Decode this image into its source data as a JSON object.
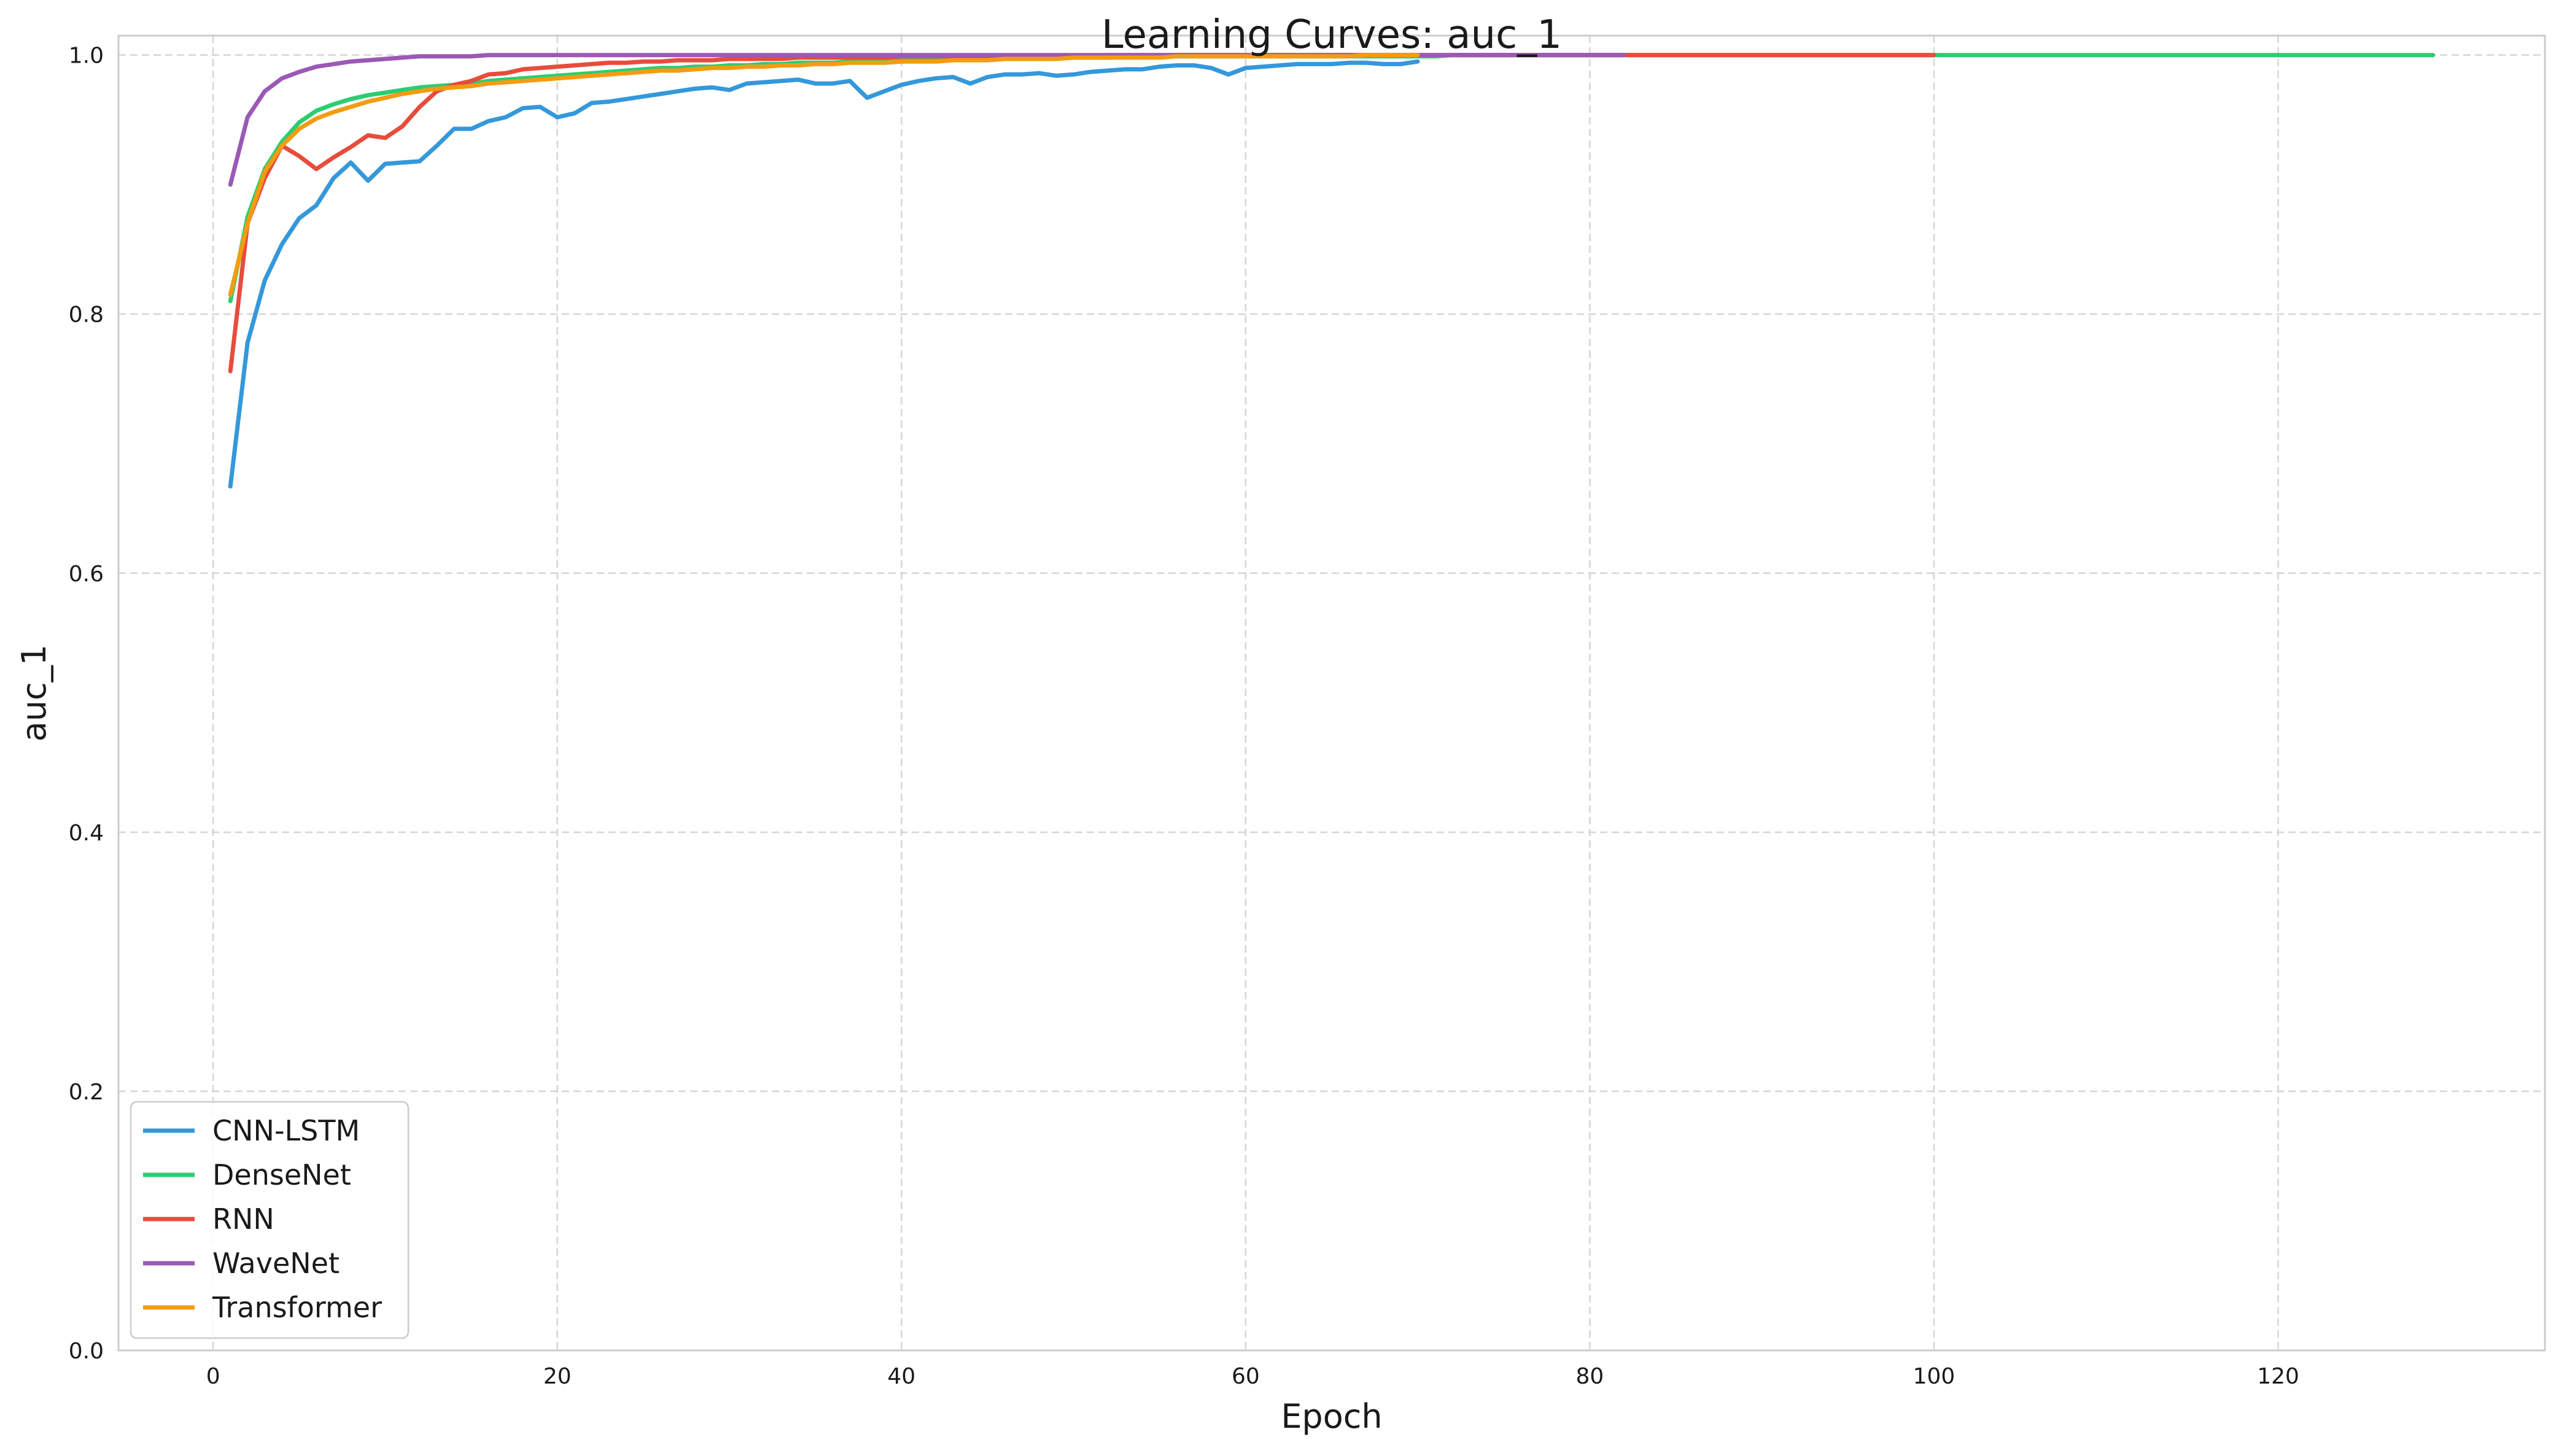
{
  "chart_data": {
    "type": "line",
    "title": "Learning Curves: auc_1",
    "xlabel": "Epoch",
    "ylabel": "auc_1",
    "xlim": [
      -5.5,
      135.5
    ],
    "ylim": [
      0.0,
      1.015
    ],
    "xticks": [
      0,
      20,
      40,
      60,
      80,
      100,
      120
    ],
    "xtick_labels": [
      "0",
      "20",
      "40",
      "60",
      "80",
      "100",
      "120"
    ],
    "yticks": [
      0.0,
      0.2,
      0.4,
      0.6,
      0.8,
      1.0
    ],
    "ytick_labels": [
      "0.0",
      "0.2",
      "0.4",
      "0.6",
      "0.8",
      "1.0"
    ],
    "grid": true,
    "legend_position": "lower-left",
    "series": [
      {
        "name": "CNN-LSTM",
        "color": "#3498db",
        "x_start": 1,
        "values": [
          0.667,
          0.778,
          0.826,
          0.854,
          0.874,
          0.884,
          0.905,
          0.917,
          0.903,
          0.916,
          0.917,
          0.918,
          0.93,
          0.943,
          0.943,
          0.949,
          0.952,
          0.959,
          0.96,
          0.952,
          0.955,
          0.963,
          0.964,
          0.966,
          0.968,
          0.97,
          0.972,
          0.974,
          0.975,
          0.973,
          0.978,
          0.979,
          0.98,
          0.981,
          0.978,
          0.978,
          0.98,
          0.967,
          0.972,
          0.977,
          0.98,
          0.982,
          0.983,
          0.978,
          0.983,
          0.985,
          0.985,
          0.986,
          0.984,
          0.985,
          0.987,
          0.988,
          0.989,
          0.989,
          0.991,
          0.992,
          0.992,
          0.99,
          0.985,
          0.99,
          0.991,
          0.992,
          0.993,
          0.993,
          0.993,
          0.994,
          0.994,
          0.993,
          0.993,
          0.995
        ]
      },
      {
        "name": "DenseNet",
        "color": "#2ecc71",
        "x_start": 1,
        "values": [
          0.81,
          0.875,
          0.912,
          0.933,
          0.948,
          0.957,
          0.962,
          0.966,
          0.969,
          0.971,
          0.973,
          0.975,
          0.976,
          0.977,
          0.978,
          0.98,
          0.981,
          0.982,
          0.983,
          0.984,
          0.985,
          0.986,
          0.987,
          0.988,
          0.989,
          0.99,
          0.99,
          0.991,
          0.991,
          0.992,
          0.992,
          0.993,
          0.993,
          0.994,
          0.994,
          0.994,
          0.995,
          0.995,
          0.995,
          0.996,
          0.996,
          0.996,
          0.997,
          0.997,
          0.997,
          0.997,
          0.998,
          0.998,
          0.998,
          0.998,
          0.998,
          0.998,
          0.999,
          0.999,
          0.999,
          0.999,
          0.999,
          0.999,
          0.999,
          0.999,
          0.999,
          0.999,
          0.999,
          0.999,
          0.999,
          0.999,
          0.999,
          0.999,
          0.999,
          0.999,
          0.999,
          1.0,
          1.0,
          1.0,
          1.0,
          1.0,
          1.0,
          1.0,
          1.0,
          1.0,
          1.0,
          1.0,
          1.0,
          1.0,
          1.0,
          1.0,
          1.0,
          1.0,
          1.0,
          1.0,
          1.0,
          1.0,
          1.0,
          1.0,
          1.0,
          1.0,
          1.0,
          1.0,
          1.0,
          1.0,
          1.0,
          1.0,
          1.0,
          1.0,
          1.0,
          1.0,
          1.0,
          1.0,
          1.0,
          1.0,
          1.0,
          1.0,
          1.0,
          1.0,
          1.0,
          1.0,
          1.0,
          1.0,
          1.0,
          1.0,
          1.0,
          1.0,
          1.0,
          1.0,
          1.0,
          1.0,
          1.0,
          1.0,
          1.0
        ]
      },
      {
        "name": "RNN",
        "color": "#e74c3c",
        "x_start": 1,
        "values": [
          0.756,
          0.87,
          0.905,
          0.93,
          0.922,
          0.912,
          0.921,
          0.929,
          0.938,
          0.936,
          0.945,
          0.96,
          0.972,
          0.977,
          0.98,
          0.985,
          0.986,
          0.989,
          0.99,
          0.991,
          0.992,
          0.993,
          0.994,
          0.994,
          0.995,
          0.995,
          0.996,
          0.996,
          0.996,
          0.997,
          0.997,
          0.997,
          0.997,
          0.998,
          0.998,
          0.998,
          0.998,
          0.998,
          0.998,
          0.999,
          0.999,
          0.999,
          0.999,
          0.999,
          0.999,
          0.999,
          0.999,
          0.999,
          0.999,
          0.999,
          0.999,
          1.0,
          1.0,
          1.0,
          1.0,
          1.0,
          1.0,
          1.0,
          1.0,
          1.0,
          1.0,
          1.0,
          1.0,
          1.0,
          1.0,
          1.0,
          1.0,
          1.0,
          1.0,
          1.0,
          1.0,
          1.0,
          1.0,
          1.0,
          1.0,
          1.0,
          1.0,
          1.0,
          1.0,
          1.0,
          1.0,
          1.0,
          1.0,
          1.0,
          1.0,
          1.0,
          1.0,
          1.0,
          1.0,
          1.0,
          1.0,
          1.0,
          1.0,
          1.0,
          1.0,
          1.0,
          1.0,
          1.0,
          1.0,
          1.0
        ]
      },
      {
        "name": "WaveNet",
        "color": "#9b59b6",
        "x_start": 1,
        "values": [
          0.9,
          0.952,
          0.972,
          0.982,
          0.987,
          0.991,
          0.993,
          0.995,
          0.996,
          0.997,
          0.998,
          0.999,
          0.999,
          0.999,
          0.999,
          1.0,
          1.0,
          1.0,
          1.0,
          1.0,
          1.0,
          1.0,
          1.0,
          1.0,
          1.0,
          1.0,
          1.0,
          1.0,
          1.0,
          1.0,
          1.0,
          1.0,
          1.0,
          1.0,
          1.0,
          1.0,
          1.0,
          1.0,
          1.0,
          1.0,
          1.0,
          1.0,
          1.0,
          1.0,
          1.0,
          1.0,
          1.0,
          1.0,
          1.0,
          1.0,
          1.0,
          1.0,
          1.0,
          1.0,
          1.0,
          1.0,
          1.0,
          1.0,
          1.0,
          1.0,
          1.0,
          1.0,
          1.0,
          1.0,
          1.0,
          1.0,
          1.0,
          1.0,
          1.0,
          1.0,
          1.0,
          1.0,
          1.0,
          1.0,
          1.0,
          1.0,
          1.0,
          1.0,
          1.0,
          1.0,
          1.0,
          1.0
        ]
      },
      {
        "name": "Transformer",
        "color": "#f39c12",
        "x_start": 1,
        "values": [
          0.815,
          0.87,
          0.91,
          0.93,
          0.943,
          0.951,
          0.956,
          0.96,
          0.964,
          0.967,
          0.97,
          0.972,
          0.974,
          0.975,
          0.976,
          0.978,
          0.979,
          0.98,
          0.981,
          0.982,
          0.983,
          0.984,
          0.985,
          0.986,
          0.987,
          0.988,
          0.988,
          0.989,
          0.99,
          0.99,
          0.991,
          0.991,
          0.992,
          0.992,
          0.993,
          0.993,
          0.994,
          0.994,
          0.994,
          0.995,
          0.995,
          0.995,
          0.996,
          0.996,
          0.996,
          0.997,
          0.997,
          0.997,
          0.997,
          0.998,
          0.998,
          0.998,
          0.998,
          0.998,
          0.998,
          0.999,
          0.999,
          0.999,
          0.999,
          0.999,
          0.999,
          0.999,
          0.999,
          0.999,
          0.999,
          0.999,
          1.0,
          1.0,
          1.0,
          1.0
        ]
      }
    ]
  }
}
